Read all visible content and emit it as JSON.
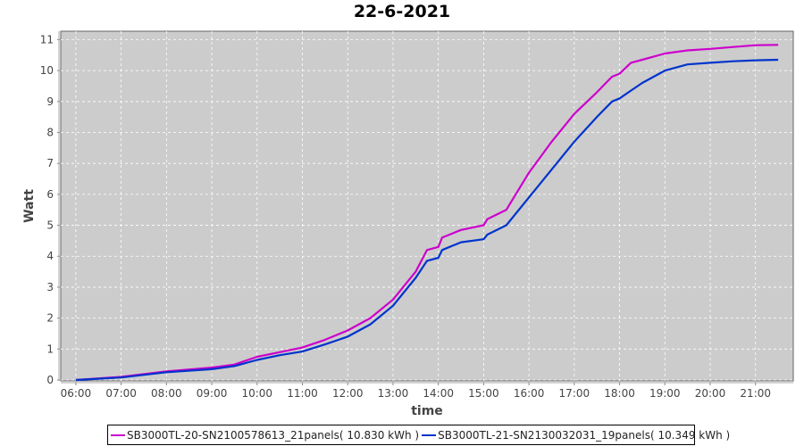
{
  "chart_data": {
    "type": "line",
    "title": "22-6-2021",
    "xlabel": "time",
    "ylabel": "Watt",
    "xlim": [
      "05:40",
      "21:50"
    ],
    "ylim": [
      0,
      11.3
    ],
    "xticks": [
      "06:00",
      "07:00",
      "08:00",
      "09:00",
      "10:00",
      "11:00",
      "12:00",
      "13:00",
      "14:00",
      "15:00",
      "16:00",
      "17:00",
      "18:00",
      "19:00",
      "20:00",
      "21:00"
    ],
    "yticks": [
      0,
      1,
      2,
      3,
      4,
      5,
      6,
      7,
      8,
      9,
      10,
      11
    ],
    "grid": true,
    "legend_position": "bottom",
    "x": [
      "06:00",
      "07:00",
      "08:00",
      "09:00",
      "09:30",
      "10:00",
      "10:30",
      "11:00",
      "11:30",
      "12:00",
      "12:30",
      "13:00",
      "13:30",
      "13:45",
      "14:00",
      "14:05",
      "14:30",
      "15:00",
      "15:05",
      "15:30",
      "16:00",
      "16:30",
      "17:00",
      "17:30",
      "17:50",
      "18:00",
      "18:15",
      "18:30",
      "19:00",
      "19:30",
      "20:00",
      "20:30",
      "21:00",
      "21:30"
    ],
    "series": [
      {
        "name": "SB3000TL-20-SN2100578613_21panels( 10.830 kWh )",
        "color": "#cc00cc",
        "values": [
          0,
          0.1,
          0.28,
          0.4,
          0.5,
          0.75,
          0.9,
          1.05,
          1.3,
          1.6,
          2.0,
          2.6,
          3.5,
          4.2,
          4.3,
          4.6,
          4.85,
          5.0,
          5.2,
          5.5,
          6.7,
          7.7,
          8.6,
          9.3,
          9.8,
          9.9,
          10.25,
          10.35,
          10.55,
          10.65,
          10.7,
          10.76,
          10.82,
          10.83
        ]
      },
      {
        "name": "SB3000TL-21-SN2130032031_19panels( 10.349 kWh )",
        "color": "#0033cc",
        "values": [
          0,
          0.08,
          0.25,
          0.35,
          0.45,
          0.65,
          0.8,
          0.92,
          1.15,
          1.4,
          1.8,
          2.4,
          3.3,
          3.85,
          3.95,
          4.2,
          4.45,
          4.55,
          4.7,
          5.0,
          5.9,
          6.8,
          7.7,
          8.5,
          9.0,
          9.1,
          9.35,
          9.6,
          10.0,
          10.2,
          10.25,
          10.3,
          10.33,
          10.35
        ]
      }
    ]
  },
  "colors": {
    "plot_background": "#cccccc",
    "grid": "#ffffff"
  }
}
